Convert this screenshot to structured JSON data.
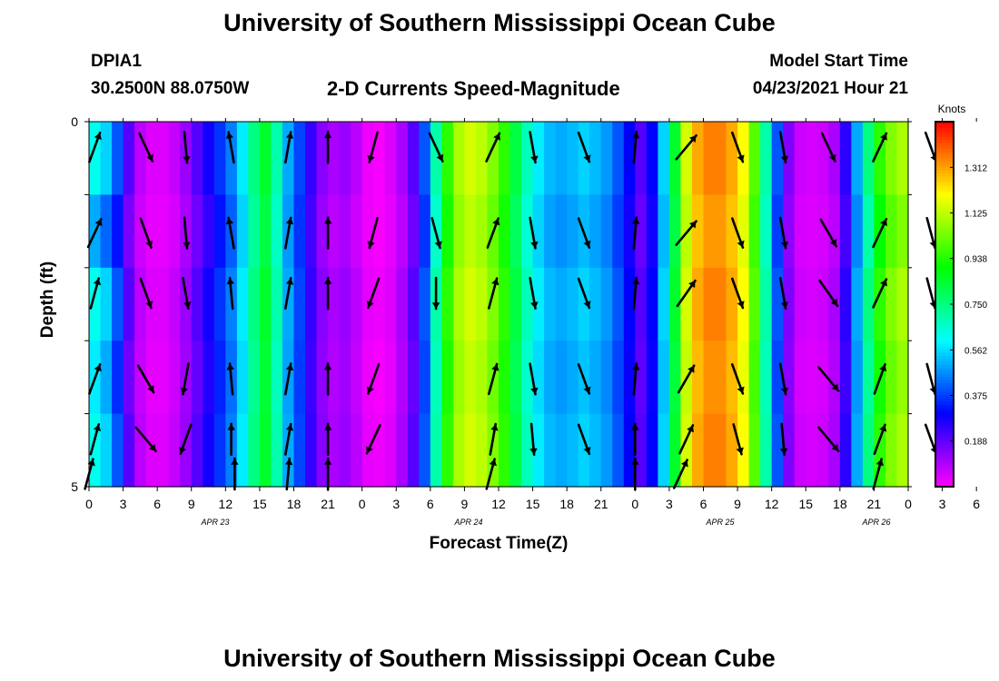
{
  "titles": {
    "top": "University of Southern Mississippi Ocean Cube",
    "bottom": "University of Southern Mississippi Ocean Cube"
  },
  "header": {
    "station": "DPIA1",
    "coords": "30.2500N  88.0750W",
    "subtitle": "2-D Currents Speed-Magnitude",
    "model_label": "Model Start Time",
    "model_time": "04/23/2021 Hour 21"
  },
  "chart_data": {
    "type": "heatmap",
    "title": "2-D Currents Speed-Magnitude",
    "xlabel": "Forecast Time(Z)",
    "ylabel": "Depth (ft)",
    "x_tick_labels": [
      "0",
      "3",
      "6",
      "9",
      "12",
      "15",
      "18",
      "21",
      "0",
      "3",
      "6",
      "9",
      "12",
      "15",
      "18",
      "21",
      "0",
      "3",
      "6",
      "9",
      "12",
      "15",
      "18",
      "21",
      "0",
      "3",
      "6"
    ],
    "date_labels": [
      "APR 23",
      "APR 24",
      "APR 25",
      "APR 26"
    ],
    "y_tick_labels": [
      "0",
      "5"
    ],
    "ylim": [
      0,
      5
    ],
    "colorbar": {
      "label": "Knots",
      "range": [
        0.0,
        1.5
      ],
      "tick_values": [
        0.188,
        0.375,
        0.562,
        0.75,
        0.938,
        1.125,
        1.312
      ],
      "tick_labels": [
        "0.188",
        "0.375",
        "0.562",
        "0.750",
        "0.938",
        "1.125",
        "1.312"
      ]
    },
    "depth_bins": 5,
    "speed_knots": [
      [
        0.62,
        0.5,
        0.62,
        0.58,
        0.62
      ],
      [
        0.55,
        0.42,
        0.55,
        0.5,
        0.55
      ],
      [
        0.4,
        0.32,
        0.4,
        0.35,
        0.4
      ],
      [
        0.2,
        0.16,
        0.2,
        0.17,
        0.2
      ],
      [
        0.08,
        0.06,
        0.08,
        0.07,
        0.08
      ],
      [
        0.04,
        0.03,
        0.04,
        0.03,
        0.04
      ],
      [
        0.04,
        0.03,
        0.04,
        0.03,
        0.04
      ],
      [
        0.07,
        0.05,
        0.07,
        0.06,
        0.07
      ],
      [
        0.12,
        0.1,
        0.12,
        0.11,
        0.12
      ],
      [
        0.2,
        0.17,
        0.2,
        0.18,
        0.2
      ],
      [
        0.28,
        0.24,
        0.28,
        0.26,
        0.28
      ],
      [
        0.36,
        0.32,
        0.36,
        0.34,
        0.36
      ],
      [
        0.45,
        0.41,
        0.45,
        0.43,
        0.45
      ],
      [
        0.58,
        0.55,
        0.58,
        0.56,
        0.58
      ],
      [
        0.75,
        0.72,
        0.75,
        0.73,
        0.75
      ],
      [
        0.85,
        0.82,
        0.85,
        0.84,
        0.85
      ],
      [
        0.7,
        0.67,
        0.7,
        0.68,
        0.7
      ],
      [
        0.5,
        0.48,
        0.5,
        0.49,
        0.5
      ],
      [
        0.38,
        0.36,
        0.38,
        0.37,
        0.38
      ],
      [
        0.24,
        0.22,
        0.24,
        0.23,
        0.24
      ],
      [
        0.14,
        0.12,
        0.14,
        0.13,
        0.14
      ],
      [
        0.1,
        0.08,
        0.1,
        0.09,
        0.1
      ],
      [
        0.12,
        0.1,
        0.12,
        0.11,
        0.12
      ],
      [
        0.08,
        0.06,
        0.08,
        0.07,
        0.08
      ],
      [
        0.02,
        0.02,
        0.03,
        0.02,
        0.03
      ],
      [
        0.01,
        0.01,
        0.02,
        0.01,
        0.02
      ],
      [
        0.04,
        0.03,
        0.04,
        0.03,
        0.04
      ],
      [
        0.1,
        0.08,
        0.1,
        0.09,
        0.1
      ],
      [
        0.2,
        0.17,
        0.2,
        0.18,
        0.2
      ],
      [
        0.4,
        0.36,
        0.4,
        0.38,
        0.4
      ],
      [
        0.7,
        0.66,
        0.7,
        0.68,
        0.7
      ],
      [
        0.95,
        0.92,
        0.95,
        0.93,
        0.95
      ],
      [
        1.1,
        1.07,
        1.1,
        1.08,
        1.1
      ],
      [
        1.15,
        1.12,
        1.15,
        1.13,
        1.15
      ],
      [
        1.12,
        1.09,
        1.12,
        1.1,
        1.12
      ],
      [
        1.05,
        1.02,
        1.05,
        1.03,
        1.05
      ],
      [
        0.95,
        0.92,
        0.95,
        0.93,
        0.95
      ],
      [
        0.82,
        0.79,
        0.82,
        0.8,
        0.82
      ],
      [
        0.68,
        0.65,
        0.68,
        0.66,
        0.68
      ],
      [
        0.58,
        0.55,
        0.58,
        0.56,
        0.58
      ],
      [
        0.52,
        0.49,
        0.52,
        0.5,
        0.52
      ],
      [
        0.5,
        0.47,
        0.5,
        0.48,
        0.5
      ],
      [
        0.52,
        0.49,
        0.52,
        0.5,
        0.52
      ],
      [
        0.55,
        0.52,
        0.55,
        0.53,
        0.55
      ],
      [
        0.52,
        0.49,
        0.52,
        0.5,
        0.52
      ],
      [
        0.48,
        0.45,
        0.48,
        0.46,
        0.48
      ],
      [
        0.4,
        0.37,
        0.4,
        0.38,
        0.4
      ],
      [
        0.3,
        0.28,
        0.3,
        0.29,
        0.3
      ],
      [
        0.2,
        0.18,
        0.2,
        0.19,
        0.2
      ],
      [
        0.3,
        0.28,
        0.3,
        0.29,
        0.3
      ],
      [
        0.55,
        0.52,
        0.55,
        0.53,
        0.55
      ],
      [
        0.85,
        0.82,
        0.85,
        0.83,
        0.85
      ],
      [
        1.15,
        1.12,
        1.15,
        1.13,
        1.15
      ],
      [
        1.3,
        1.27,
        1.3,
        1.28,
        1.3
      ],
      [
        1.35,
        1.32,
        1.35,
        1.33,
        1.35
      ],
      [
        1.35,
        1.32,
        1.35,
        1.33,
        1.35
      ],
      [
        1.3,
        1.27,
        1.3,
        1.28,
        1.3
      ],
      [
        1.2,
        1.17,
        1.2,
        1.18,
        1.2
      ],
      [
        1.0,
        0.97,
        1.0,
        0.98,
        1.0
      ],
      [
        0.7,
        0.67,
        0.7,
        0.68,
        0.7
      ],
      [
        0.4,
        0.37,
        0.4,
        0.38,
        0.4
      ],
      [
        0.15,
        0.13,
        0.15,
        0.14,
        0.15
      ],
      [
        0.06,
        0.05,
        0.06,
        0.05,
        0.06
      ],
      [
        0.05,
        0.04,
        0.05,
        0.04,
        0.05
      ],
      [
        0.06,
        0.05,
        0.06,
        0.05,
        0.06
      ],
      [
        0.1,
        0.08,
        0.1,
        0.09,
        0.1
      ],
      [
        0.25,
        0.22,
        0.25,
        0.23,
        0.25
      ],
      [
        0.5,
        0.46,
        0.5,
        0.48,
        0.5
      ],
      [
        0.75,
        0.7,
        0.75,
        0.72,
        0.75
      ],
      [
        0.95,
        0.9,
        0.95,
        0.92,
        0.95
      ],
      [
        1.05,
        1.0,
        1.05,
        1.02,
        1.05
      ],
      [
        1.1,
        1.05,
        1.1,
        1.07,
        1.1
      ]
    ],
    "arrow_columns": [
      {
        "hour": 0.5,
        "angles_deg": [
          20,
          25,
          15,
          20,
          15
        ]
      },
      {
        "hour": 5.0,
        "angles_deg": [
          155,
          160,
          160,
          150,
          140
        ]
      },
      {
        "hour": 8.5,
        "angles_deg": [
          175,
          175,
          170,
          190,
          200
        ]
      },
      {
        "hour": 12.5,
        "angles_deg": [
          -10,
          -10,
          -5,
          -5,
          0
        ]
      },
      {
        "hour": 17.5,
        "angles_deg": [
          10,
          10,
          10,
          10,
          10
        ]
      },
      {
        "hour": 21.0,
        "angles_deg": [
          0,
          0,
          0,
          0,
          0
        ]
      },
      {
        "hour": 25.0,
        "angles_deg": [
          195,
          195,
          200,
          200,
          205
        ]
      },
      {
        "hour": 30.5,
        "angles_deg": [
          155,
          165,
          180,
          null,
          null
        ]
      },
      {
        "hour": 35.5,
        "angles_deg": [
          25,
          20,
          15,
          15,
          10
        ]
      },
      {
        "hour": 39.0,
        "angles_deg": [
          170,
          170,
          170,
          170,
          175
        ]
      },
      {
        "hour": 43.5,
        "angles_deg": [
          160,
          160,
          160,
          160,
          160
        ]
      },
      {
        "hour": 48.0,
        "angles_deg": [
          5,
          5,
          5,
          5,
          0
        ]
      },
      {
        "hour": 52.5,
        "angles_deg": [
          40,
          40,
          35,
          30,
          25
        ]
      },
      {
        "hour": 57.0,
        "angles_deg": [
          160,
          160,
          160,
          160,
          165
        ]
      },
      {
        "hour": 61.0,
        "angles_deg": [
          170,
          170,
          170,
          170,
          175
        ]
      },
      {
        "hour": 65.0,
        "angles_deg": [
          155,
          150,
          145,
          140,
          140
        ]
      },
      {
        "hour": 69.5,
        "angles_deg": [
          25,
          25,
          25,
          20,
          20
        ]
      },
      {
        "hour": 74.0,
        "angles_deg": [
          160,
          165,
          165,
          165,
          160
        ]
      }
    ],
    "arrow_extra": [
      {
        "hour": 0.0,
        "row": 4.85,
        "angle_deg": 15
      },
      {
        "hour": 12.8,
        "row": 4.85,
        "angle_deg": 0
      },
      {
        "hour": 17.5,
        "row": 4.85,
        "angle_deg": 5
      },
      {
        "hour": 21.0,
        "row": 4.85,
        "angle_deg": 0
      },
      {
        "hour": 35.3,
        "row": 4.85,
        "angle_deg": 15
      },
      {
        "hour": 48.0,
        "row": 4.85,
        "angle_deg": 0
      },
      {
        "hour": 52.0,
        "row": 4.85,
        "angle_deg": 25
      },
      {
        "hour": 69.3,
        "row": 4.85,
        "angle_deg": 15
      }
    ]
  }
}
